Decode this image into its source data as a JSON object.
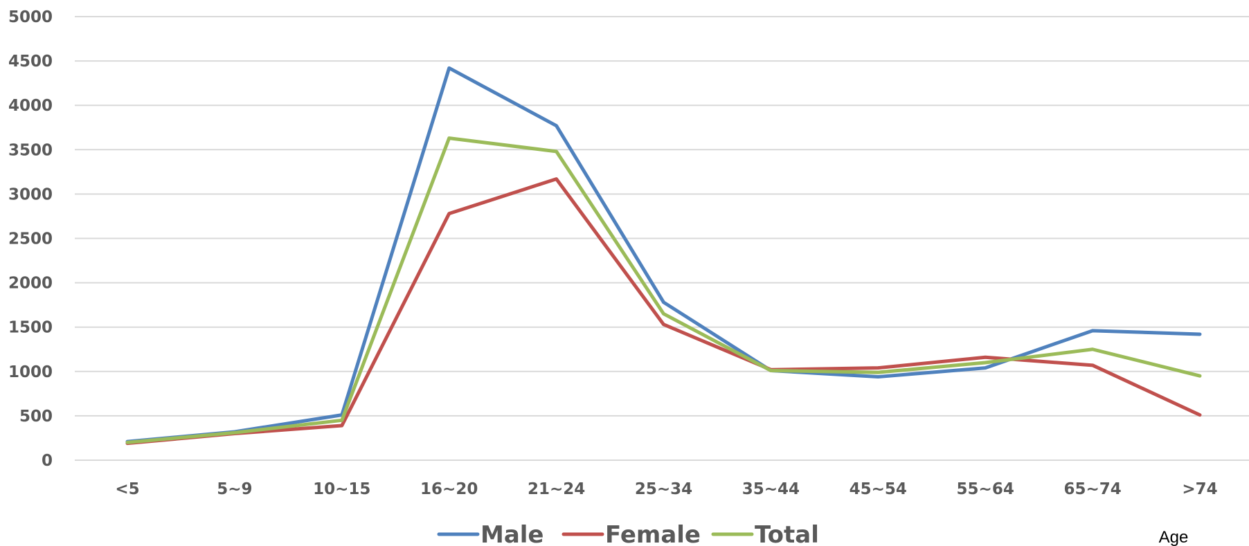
{
  "chart_data": {
    "type": "line",
    "title": "",
    "xlabel": "Age",
    "ylabel": "",
    "categories": [
      "<5",
      "5~9",
      "10~15",
      "16~20",
      "21~24",
      "25~34",
      "35~44",
      "45~54",
      "55~64",
      "65~74",
      ">74"
    ],
    "ylim": [
      0,
      5000
    ],
    "y_ticks": [
      "0",
      "500",
      "1000",
      "1500",
      "2000",
      "2500",
      "3000",
      "3500",
      "4000",
      "4500",
      "5000"
    ],
    "grid": true,
    "legend_position": "bottom",
    "series": [
      {
        "name": "Male",
        "color": "#4F81BD",
        "values": [
          210,
          320,
          510,
          4420,
          3770,
          1780,
          1010,
          940,
          1040,
          1460,
          1420
        ]
      },
      {
        "name": "Female",
        "color": "#C0504D",
        "values": [
          190,
          300,
          390,
          2780,
          3170,
          1530,
          1020,
          1040,
          1160,
          1070,
          510
        ]
      },
      {
        "name": "Total",
        "color": "#9BBB59",
        "values": [
          200,
          310,
          450,
          3630,
          3480,
          1650,
          1010,
          990,
          1100,
          1250,
          950
        ]
      }
    ]
  }
}
